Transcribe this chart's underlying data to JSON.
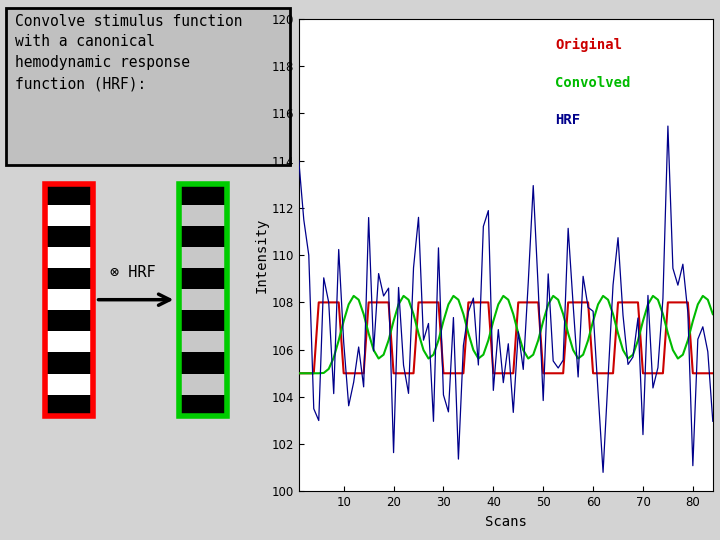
{
  "title_text": "Convolve stimulus function\nwith a canonical\nhemodynamic response\nfunction (HRF):",
  "title_bg": "#c0c0c0",
  "title_font": "monospace",
  "title_fontsize": 10.5,
  "xlabel": "Scans",
  "ylabel": "Intensity",
  "ylim": [
    100,
    120
  ],
  "xlim": [
    1,
    84
  ],
  "xticks": [
    10,
    20,
    30,
    40,
    50,
    60,
    70,
    80
  ],
  "yticks": [
    100,
    102,
    104,
    106,
    108,
    110,
    112,
    114,
    116,
    118,
    120
  ],
  "legend_labels": [
    "Original",
    "Convolved",
    "HRF"
  ],
  "legend_colors": [
    "#cc0000",
    "#00bb00",
    "#00008b"
  ],
  "bg_color": "#d3d3d3",
  "plot_bg": "#ffffff",
  "n_scans": 84,
  "baseline": 105.0,
  "amplitude": 3.0,
  "seed": 7,
  "noise_std": 2.2
}
